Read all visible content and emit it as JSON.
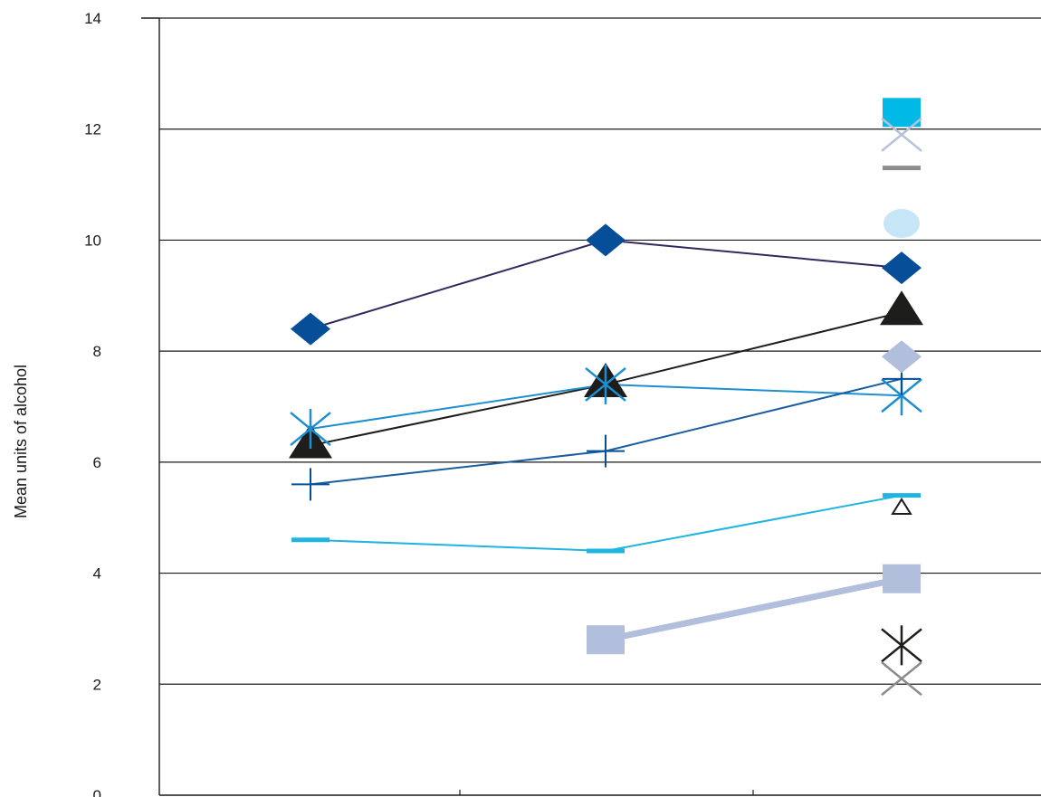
{
  "chart_data": {
    "type": "line",
    "title": "",
    "xlabel": "",
    "ylabel": "Mean units of alcohol",
    "ylim": [
      0,
      14
    ],
    "yticks": [
      0,
      2,
      4,
      6,
      8,
      10,
      12,
      14
    ],
    "categories": [
      "",
      "",
      ""
    ],
    "grid": "horizontal",
    "legend": "none",
    "series": [
      {
        "values": [
          8.4,
          10.0,
          9.5
        ],
        "color": "#064f98",
        "line_color": "#35265e",
        "line_width": 2,
        "marker": "diamond"
      },
      {
        "values": [
          6.3,
          7.4,
          8.7
        ],
        "color": "#1d1d1b",
        "line_color": "#1d1d1b",
        "line_width": 2,
        "marker": "triangle"
      },
      {
        "values": [
          6.6,
          7.4,
          7.2
        ],
        "color": "#1d8fd0",
        "line_color": "#1d8fd0",
        "line_width": 2,
        "marker": "asterisk"
      },
      {
        "values": [
          5.6,
          6.2,
          7.5
        ],
        "color": "#064f98",
        "line_color": "#1a5da0",
        "line_width": 2,
        "marker": "plus"
      },
      {
        "values": [
          4.6,
          4.4,
          5.4
        ],
        "color": "#20b4e0",
        "line_color": "#20b4e0",
        "line_width": 2,
        "marker": "dash"
      },
      {
        "values": [
          null,
          2.8,
          3.9
        ],
        "color": "#b1bedc",
        "line_color": "#b1bedc",
        "line_width": 7,
        "marker": "square"
      },
      {
        "values": [
          null,
          null,
          12.3
        ],
        "color": "#00b9e6",
        "marker": "square"
      },
      {
        "values": [
          null,
          null,
          11.9
        ],
        "color": "#b7c1dc",
        "marker": "x"
      },
      {
        "values": [
          null,
          null,
          11.3
        ],
        "color": "#8c8c8c",
        "marker": "dash"
      },
      {
        "values": [
          null,
          null,
          10.3
        ],
        "color": "#c6e6f7",
        "marker": "circle"
      },
      {
        "values": [
          null,
          null,
          7.9
        ],
        "color": "#b1bedc",
        "marker": "diamond"
      },
      {
        "values": [
          null,
          null,
          5.2
        ],
        "color": "#1d1d1b",
        "marker": "open-triangle"
      },
      {
        "values": [
          null,
          null,
          2.7
        ],
        "color": "#1d1d1b",
        "marker": "asterisk"
      },
      {
        "values": [
          null,
          null,
          2.1
        ],
        "color": "#8c8c8c",
        "marker": "x"
      }
    ]
  }
}
